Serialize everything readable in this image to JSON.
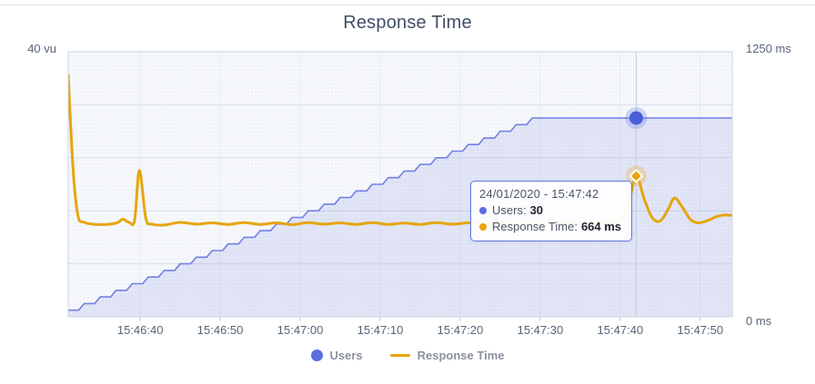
{
  "title": "Response Time",
  "axes": {
    "left_top_label": "40 vu",
    "right_top_label": "1250 ms",
    "right_bottom_label": "0 ms"
  },
  "tooltip": {
    "datetime": "24/01/2020 - 15:47:42",
    "users_label": "Users:",
    "users_value": "30",
    "response_label": "Response Time:",
    "response_value": "664 ms"
  },
  "legend": {
    "users": "Users",
    "response_time": "Response Time"
  },
  "colors": {
    "title_text": "#424e66",
    "axis_text": "#57657a",
    "legend_text": "#8d929e",
    "plot_bg": "#f6f8fb",
    "plot_dot": "#e4e8f2",
    "grid_h": "#d8dee9",
    "grid_v": "#eaedf4",
    "plot_border": "#c9d4e3",
    "tick_mark": "#b9c5d6",
    "crosshair": "#c8ceda",
    "users_line": "#7280e3",
    "users_fill": "rgba(116,132,226,0.16)",
    "users_marker": "#4a5ed9",
    "users_halo": "rgba(98,118,226,0.28)",
    "response_line": "#e6a50e",
    "response_halo": "rgba(233,175,66,0.33)",
    "tooltip_border": "#5f79db"
  },
  "chart_data": {
    "type": "area",
    "title": "Response Time",
    "x_start_time": "15:46:31",
    "x_domain_seconds": 83,
    "x_ticks": [
      {
        "t": 9,
        "label": "15:46:40"
      },
      {
        "t": 19,
        "label": "15:46:50"
      },
      {
        "t": 29,
        "label": "15:47:00"
      },
      {
        "t": 39,
        "label": "15:47:10"
      },
      {
        "t": 49,
        "label": "15:47:20"
      },
      {
        "t": 59,
        "label": "15:47:30"
      },
      {
        "t": 69,
        "label": "15:47:40"
      },
      {
        "t": 79,
        "label": "15:47:50"
      }
    ],
    "left_axis": {
      "label": "40 vu",
      "unit": "vu",
      "min": 0,
      "max": 40
    },
    "right_axis": {
      "label": "1250 ms",
      "unit": "ms",
      "min": 0,
      "max": 1250,
      "bottom_label": "0 ms"
    },
    "grid_interval_ms": 250,
    "series": [
      {
        "name": "Users",
        "type": "area-step",
        "axis": "left",
        "points": [
          [
            0,
            1
          ],
          [
            2,
            2
          ],
          [
            4,
            3
          ],
          [
            6,
            4
          ],
          [
            8,
            5
          ],
          [
            10,
            6
          ],
          [
            12,
            7
          ],
          [
            14,
            8
          ],
          [
            16,
            9
          ],
          [
            18,
            10
          ],
          [
            20,
            11
          ],
          [
            22,
            12
          ],
          [
            24,
            13
          ],
          [
            26,
            14
          ],
          [
            28,
            15
          ],
          [
            30,
            16
          ],
          [
            32,
            17
          ],
          [
            34,
            18
          ],
          [
            36,
            19
          ],
          [
            38,
            20
          ],
          [
            40,
            21
          ],
          [
            42,
            22
          ],
          [
            44,
            23
          ],
          [
            46,
            24
          ],
          [
            48,
            25
          ],
          [
            50,
            26
          ],
          [
            52,
            27
          ],
          [
            54,
            28
          ],
          [
            56,
            29
          ],
          [
            58,
            30
          ],
          [
            83,
            30
          ]
        ]
      },
      {
        "name": "Response Time",
        "type": "line",
        "axis": "right",
        "points": [
          [
            0,
            1140
          ],
          [
            0.6,
            700
          ],
          [
            1.2,
            480
          ],
          [
            2,
            445
          ],
          [
            4,
            435
          ],
          [
            6,
            442
          ],
          [
            6.8,
            460
          ],
          [
            7.6,
            446
          ],
          [
            8.3,
            455
          ],
          [
            8.9,
            690
          ],
          [
            9.7,
            465
          ],
          [
            10.5,
            437
          ],
          [
            12,
            433
          ],
          [
            14,
            445
          ],
          [
            16,
            437
          ],
          [
            18,
            443
          ],
          [
            20,
            436
          ],
          [
            22,
            444
          ],
          [
            24,
            436
          ],
          [
            26,
            443
          ],
          [
            28,
            435
          ],
          [
            30,
            444
          ],
          [
            32,
            437
          ],
          [
            34,
            443
          ],
          [
            36,
            436
          ],
          [
            38,
            444
          ],
          [
            40,
            436
          ],
          [
            42,
            442
          ],
          [
            44,
            436
          ],
          [
            46,
            444
          ],
          [
            48,
            437
          ],
          [
            50,
            443
          ],
          [
            52,
            436
          ],
          [
            54,
            443
          ],
          [
            56,
            436
          ],
          [
            58,
            442
          ],
          [
            60,
            436
          ],
          [
            62,
            443
          ],
          [
            64,
            437
          ],
          [
            66,
            442
          ],
          [
            68,
            440
          ],
          [
            69,
            455
          ],
          [
            70,
            530
          ],
          [
            71,
            664
          ],
          [
            72,
            555
          ],
          [
            73,
            468
          ],
          [
            74,
            452
          ],
          [
            75,
            508
          ],
          [
            75.8,
            560
          ],
          [
            76.8,
            515
          ],
          [
            77.8,
            458
          ],
          [
            78.8,
            443
          ],
          [
            80,
            455
          ],
          [
            81,
            472
          ],
          [
            82,
            480
          ],
          [
            83,
            478
          ]
        ]
      }
    ],
    "highlight": {
      "t": 71,
      "date": "24/01/2020",
      "time": "15:47:42",
      "users": 30,
      "response_ms": 664
    },
    "legend_position": "bottom",
    "grid": true
  }
}
